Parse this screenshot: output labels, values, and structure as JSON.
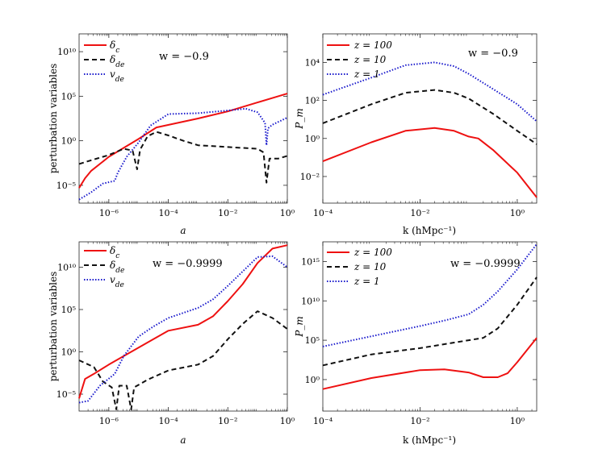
{
  "chart_data": [
    {
      "type": "line",
      "id": "tl",
      "scale": "log-log",
      "xlabel": "a",
      "ylabel": "perturbation variables",
      "annotation": "w = −0.9",
      "xlim_exp": [
        -7,
        0
      ],
      "ylim_exp": [
        -7,
        12
      ],
      "xticks": [
        {
          "exp": -6,
          "label": "10⁻⁶"
        },
        {
          "exp": -4,
          "label": "10⁻⁴"
        },
        {
          "exp": -2,
          "label": "10⁻²"
        },
        {
          "exp": 0,
          "label": "10⁰"
        }
      ],
      "yticks": [
        {
          "exp": -5,
          "label": "10⁻⁵"
        },
        {
          "exp": 0,
          "label": "10⁰"
        },
        {
          "exp": 5,
          "label": "10⁵"
        },
        {
          "exp": 10,
          "label": "10¹⁰"
        }
      ],
      "series": [
        {
          "name": "δc",
          "legend": "δ_c",
          "color": "#ee1111",
          "style": "solid",
          "points": [
            [
              -7,
              -5.3
            ],
            [
              -6.8,
              -4.2
            ],
            [
              -6.6,
              -3.4
            ],
            [
              -6,
              -1.8
            ],
            [
              -5,
              0.2
            ],
            [
              -4.4,
              1.5
            ],
            [
              -3,
              2.5
            ],
            [
              -2,
              3.3
            ],
            [
              -1,
              4.3
            ],
            [
              0,
              5.3
            ]
          ]
        },
        {
          "name": "δde",
          "legend": "δ_de",
          "color": "#111111",
          "style": "dashed",
          "points": [
            [
              -7,
              -2.6
            ],
            [
              -6.6,
              -2.2
            ],
            [
              -6,
              -1.6
            ],
            [
              -5.5,
              -0.9
            ],
            [
              -5.2,
              -1.1
            ],
            [
              -5.05,
              -3.2
            ],
            [
              -4.95,
              -1.0
            ],
            [
              -4.7,
              0.5
            ],
            [
              -4.4,
              1.0
            ],
            [
              -4,
              0.6
            ],
            [
              -3.5,
              0
            ],
            [
              -3,
              -0.5
            ],
            [
              -2,
              -0.7
            ],
            [
              -1,
              -0.9
            ],
            [
              -0.8,
              -1.3
            ],
            [
              -0.7,
              -4.7
            ],
            [
              -0.6,
              -2.0
            ],
            [
              -0.3,
              -2.0
            ],
            [
              0,
              -1.7
            ]
          ]
        },
        {
          "name": "vde",
          "legend": "v_de",
          "color": "#1a1acc",
          "style": "dotted",
          "points": [
            [
              -7,
              -6.6
            ],
            [
              -6.6,
              -5.8
            ],
            [
              -6.2,
              -4.8
            ],
            [
              -5.8,
              -4.5
            ],
            [
              -5.7,
              -3.6
            ],
            [
              -5.4,
              -1.8
            ],
            [
              -5,
              -0.2
            ],
            [
              -4.6,
              1.7
            ],
            [
              -4,
              3.0
            ],
            [
              -3,
              3.1
            ],
            [
              -2,
              3.4
            ],
            [
              -1.4,
              3.6
            ],
            [
              -1,
              3.2
            ],
            [
              -0.75,
              2.0
            ],
            [
              -0.7,
              -0.5
            ],
            [
              -0.65,
              1.4
            ],
            [
              -0.5,
              1.8
            ],
            [
              0,
              2.6
            ]
          ]
        }
      ]
    },
    {
      "type": "line",
      "id": "tr",
      "scale": "log-log",
      "xlabel": "k (hMpc⁻¹)",
      "ylabel": "P_m",
      "annotation": "w = −0.9",
      "xlim_exp": [
        -4,
        0.4
      ],
      "ylim_exp": [
        -3.4,
        5.5
      ],
      "xticks": [
        {
          "exp": -4,
          "label": "10⁻⁴"
        },
        {
          "exp": -2,
          "label": "10⁻²"
        },
        {
          "exp": 0,
          "label": "10⁰"
        }
      ],
      "yticks": [
        {
          "exp": -2,
          "label": "10⁻²"
        },
        {
          "exp": 0,
          "label": "10⁰"
        },
        {
          "exp": 2,
          "label": "10²"
        },
        {
          "exp": 4,
          "label": "10⁴"
        }
      ],
      "series": [
        {
          "name": "z = 100",
          "legend": "z = 100",
          "color": "#ee1111",
          "style": "solid",
          "points": [
            [
              -4,
              -1.2
            ],
            [
              -3,
              -0.2
            ],
            [
              -2.3,
              0.4
            ],
            [
              -1.7,
              0.55
            ],
            [
              -1.3,
              0.4
            ],
            [
              -1,
              0.1
            ],
            [
              -0.8,
              0
            ],
            [
              -0.5,
              -0.6
            ],
            [
              0,
              -1.8
            ],
            [
              0.4,
              -3.1
            ]
          ]
        },
        {
          "name": "z = 10",
          "legend": "z = 10",
          "color": "#111111",
          "style": "dashed",
          "points": [
            [
              -4,
              0.8
            ],
            [
              -3,
              1.8
            ],
            [
              -2.3,
              2.4
            ],
            [
              -1.7,
              2.55
            ],
            [
              -1.3,
              2.4
            ],
            [
              -1,
              2.1
            ],
            [
              -0.5,
              1.3
            ],
            [
              0,
              0.4
            ],
            [
              0.4,
              -0.3
            ]
          ]
        },
        {
          "name": "z = 1",
          "legend": "z = 1",
          "color": "#1a1acc",
          "style": "dotted",
          "points": [
            [
              -4,
              2.3
            ],
            [
              -3,
              3.2
            ],
            [
              -2.3,
              3.85
            ],
            [
              -1.7,
              4.0
            ],
            [
              -1.3,
              3.8
            ],
            [
              -1,
              3.4
            ],
            [
              -0.5,
              2.6
            ],
            [
              0,
              1.8
            ],
            [
              0.4,
              0.9
            ]
          ]
        }
      ]
    },
    {
      "type": "line",
      "id": "bl",
      "scale": "log-log",
      "xlabel": "a",
      "ylabel": "perturbation variables",
      "annotation": "w = −0.9999",
      "xlim_exp": [
        -7,
        0
      ],
      "ylim_exp": [
        -7,
        13
      ],
      "xticks": [
        {
          "exp": -6,
          "label": "10⁻⁶"
        },
        {
          "exp": -4,
          "label": "10⁻⁴"
        },
        {
          "exp": -2,
          "label": "10⁻²"
        },
        {
          "exp": 0,
          "label": "10⁰"
        }
      ],
      "yticks": [
        {
          "exp": -5,
          "label": "10⁻⁵"
        },
        {
          "exp": 0,
          "label": "10⁰"
        },
        {
          "exp": 5,
          "label": "10⁵"
        },
        {
          "exp": 10,
          "label": "10¹⁰"
        }
      ],
      "series": [
        {
          "name": "δc",
          "legend": "δ_c",
          "color": "#ee1111",
          "style": "solid",
          "points": [
            [
              -7,
              -5.5
            ],
            [
              -6.8,
              -3.2
            ],
            [
              -6.5,
              -2.6
            ],
            [
              -6,
              -1.5
            ],
            [
              -5,
              0.5
            ],
            [
              -4.5,
              1.5
            ],
            [
              -4,
              2.5
            ],
            [
              -3,
              3.2
            ],
            [
              -2.5,
              4.2
            ],
            [
              -2,
              6.0
            ],
            [
              -1.5,
              8.0
            ],
            [
              -1,
              10.5
            ],
            [
              -0.5,
              12.2
            ],
            [
              0,
              12.6
            ]
          ]
        },
        {
          "name": "δde",
          "legend": "δ_de",
          "color": "#111111",
          "style": "dashed",
          "points": [
            [
              -7,
              -1
            ],
            [
              -6.5,
              -1.8
            ],
            [
              -6.2,
              -3.5
            ],
            [
              -5.9,
              -4.2
            ],
            [
              -5.75,
              -6.8
            ],
            [
              -5.65,
              -4.0
            ],
            [
              -5.4,
              -4.0
            ],
            [
              -5.25,
              -6.8
            ],
            [
              -5.15,
              -4.2
            ],
            [
              -4.7,
              -3.3
            ],
            [
              -4,
              -2.2
            ],
            [
              -3,
              -1.5
            ],
            [
              -2.5,
              -0.5
            ],
            [
              -2,
              1.5
            ],
            [
              -1.5,
              3.3
            ],
            [
              -1,
              4.8
            ],
            [
              -0.5,
              4.0
            ],
            [
              0,
              2.7
            ]
          ]
        },
        {
          "name": "vde",
          "legend": "v_de",
          "color": "#1a1acc",
          "style": "dotted",
          "points": [
            [
              -7,
              -6
            ],
            [
              -6.7,
              -5.8
            ],
            [
              -6.3,
              -4.0
            ],
            [
              -5.8,
              -2.6
            ],
            [
              -5.5,
              -0.5
            ],
            [
              -5,
              1.8
            ],
            [
              -4.5,
              3.0
            ],
            [
              -4,
              4.0
            ],
            [
              -3,
              5.2
            ],
            [
              -2.5,
              6.2
            ],
            [
              -2,
              7.8
            ],
            [
              -1.5,
              9.5
            ],
            [
              -1,
              11.2
            ],
            [
              -0.5,
              11.3
            ],
            [
              0,
              10
            ]
          ]
        }
      ]
    },
    {
      "type": "line",
      "id": "br",
      "scale": "log-log",
      "xlabel": "k (hMpc⁻¹)",
      "ylabel": "P_m",
      "annotation": "w = −0.9999",
      "xlim_exp": [
        -4,
        0.4
      ],
      "ylim_exp": [
        -4,
        17.5
      ],
      "xticks": [
        {
          "exp": -4,
          "label": "10⁻⁴"
        },
        {
          "exp": -2,
          "label": "10⁻²"
        },
        {
          "exp": 0,
          "label": "10⁰"
        }
      ],
      "yticks": [
        {
          "exp": 0,
          "label": "10⁰"
        },
        {
          "exp": 5,
          "label": "10⁵"
        },
        {
          "exp": 10,
          "label": "10¹⁰"
        },
        {
          "exp": 15,
          "label": "10¹⁵"
        }
      ],
      "series": [
        {
          "name": "z = 100",
          "legend": "z = 100",
          "color": "#ee1111",
          "style": "solid",
          "points": [
            [
              -4,
              -1.2
            ],
            [
              -3,
              0.2
            ],
            [
              -2,
              1.2
            ],
            [
              -1.5,
              1.3
            ],
            [
              -1,
              0.9
            ],
            [
              -0.7,
              0.3
            ],
            [
              -0.4,
              0.3
            ],
            [
              -0.2,
              0.8
            ],
            [
              0,
              2.2
            ],
            [
              0.4,
              5.3
            ]
          ]
        },
        {
          "name": "z = 10",
          "legend": "z = 10",
          "color": "#111111",
          "style": "dashed",
          "points": [
            [
              -4,
              1.8
            ],
            [
              -3,
              3.2
            ],
            [
              -2,
              4.0
            ],
            [
              -1.5,
              4.5
            ],
            [
              -1,
              5.0
            ],
            [
              -0.7,
              5.3
            ],
            [
              -0.4,
              6.5
            ],
            [
              0,
              9.5
            ],
            [
              0.4,
              13.0
            ]
          ]
        },
        {
          "name": "z = 1",
          "legend": "z = 1",
          "color": "#1a1acc",
          "style": "dotted",
          "points": [
            [
              -4,
              4.2
            ],
            [
              -3,
              5.5
            ],
            [
              -2,
              6.8
            ],
            [
              -1.5,
              7.5
            ],
            [
              -1,
              8.3
            ],
            [
              -0.7,
              9.5
            ],
            [
              -0.4,
              11.2
            ],
            [
              0,
              14.0
            ],
            [
              0.4,
              17.2
            ]
          ]
        }
      ]
    }
  ]
}
